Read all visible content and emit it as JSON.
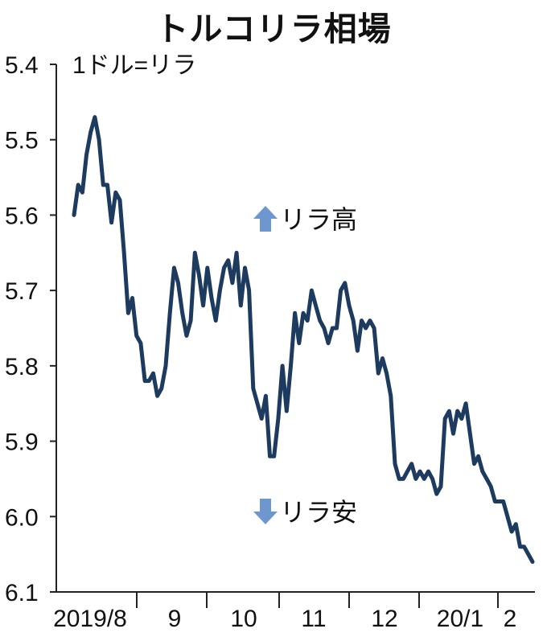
{
  "chart_data": {
    "type": "line",
    "title": "トルコリラ相場",
    "unit_label": "1ドル=リラ",
    "y_inverted": true,
    "ylim": [
      5.4,
      6.1
    ],
    "yticks": [
      "5.4",
      "5.5",
      "5.6",
      "5.7",
      "5.8",
      "5.9",
      "6.0",
      "6.1"
    ],
    "xticks": [
      "2019/8",
      "9",
      "10",
      "11",
      "12",
      "20/1",
      "2"
    ],
    "annotations": {
      "up": "リラ高",
      "down": "リラ安"
    },
    "series": [
      {
        "values": [
          5.6,
          5.56,
          5.57,
          5.52,
          5.49,
          5.47,
          5.5,
          5.56,
          5.56,
          5.61,
          5.57,
          5.58,
          5.65,
          5.73,
          5.71,
          5.76,
          5.77,
          5.82,
          5.82,
          5.81,
          5.84,
          5.83,
          5.8,
          5.73,
          5.67,
          5.69,
          5.73,
          5.76,
          5.74,
          5.65,
          5.68,
          5.72,
          5.67,
          5.71,
          5.74,
          5.7,
          5.67,
          5.66,
          5.69,
          5.65,
          5.72,
          5.67,
          5.7,
          5.83,
          5.85,
          5.87,
          5.84,
          5.92,
          5.92,
          5.87,
          5.8,
          5.86,
          5.8,
          5.73,
          5.77,
          5.73,
          5.74,
          5.7,
          5.72,
          5.74,
          5.75,
          5.77,
          5.75,
          5.75,
          5.7,
          5.69,
          5.72,
          5.74,
          5.78,
          5.74,
          5.75,
          5.74,
          5.75,
          5.81,
          5.79,
          5.81,
          5.84,
          5.93,
          5.95,
          5.95,
          5.94,
          5.93,
          5.95,
          5.94,
          5.95,
          5.94,
          5.95,
          5.97,
          5.96,
          5.87,
          5.86,
          5.89,
          5.86,
          5.87,
          5.85,
          5.89,
          5.93,
          5.92,
          5.94,
          5.95,
          5.96,
          5.98,
          5.98,
          5.98,
          6.0,
          6.02,
          6.01,
          6.04,
          6.04,
          6.05,
          6.06
        ]
      }
    ]
  }
}
